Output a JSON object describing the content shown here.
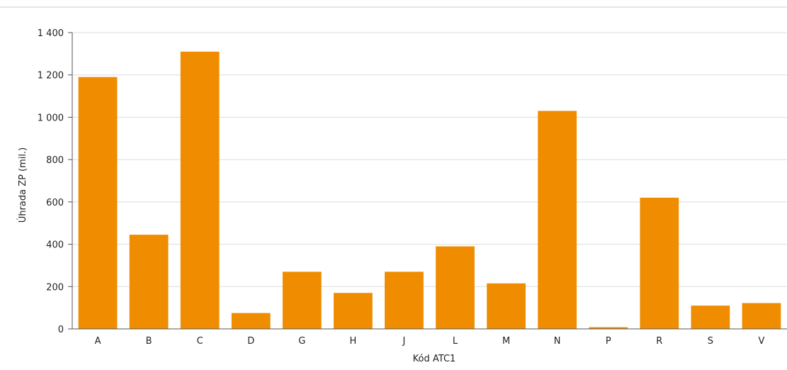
{
  "chart_data": {
    "type": "bar",
    "title": "",
    "xlabel": "Kód ATC1",
    "ylabel": "Úhrada ZP (mil.)",
    "categories": [
      "A",
      "B",
      "C",
      "D",
      "G",
      "H",
      "J",
      "L",
      "M",
      "N",
      "P",
      "R",
      "S",
      "V"
    ],
    "values": [
      1190,
      445,
      1310,
      75,
      270,
      170,
      270,
      390,
      215,
      1030,
      8,
      620,
      110,
      122
    ],
    "ylim": [
      0,
      1400
    ],
    "yticks": [
      0,
      200,
      400,
      600,
      800,
      1000,
      1200,
      1400
    ],
    "ytick_labels": [
      "0",
      "200",
      "400",
      "600",
      "800",
      "1 000",
      "1 200",
      "1 400"
    ],
    "grid": true,
    "legend": "none",
    "bar_color": "#ef8c00"
  }
}
